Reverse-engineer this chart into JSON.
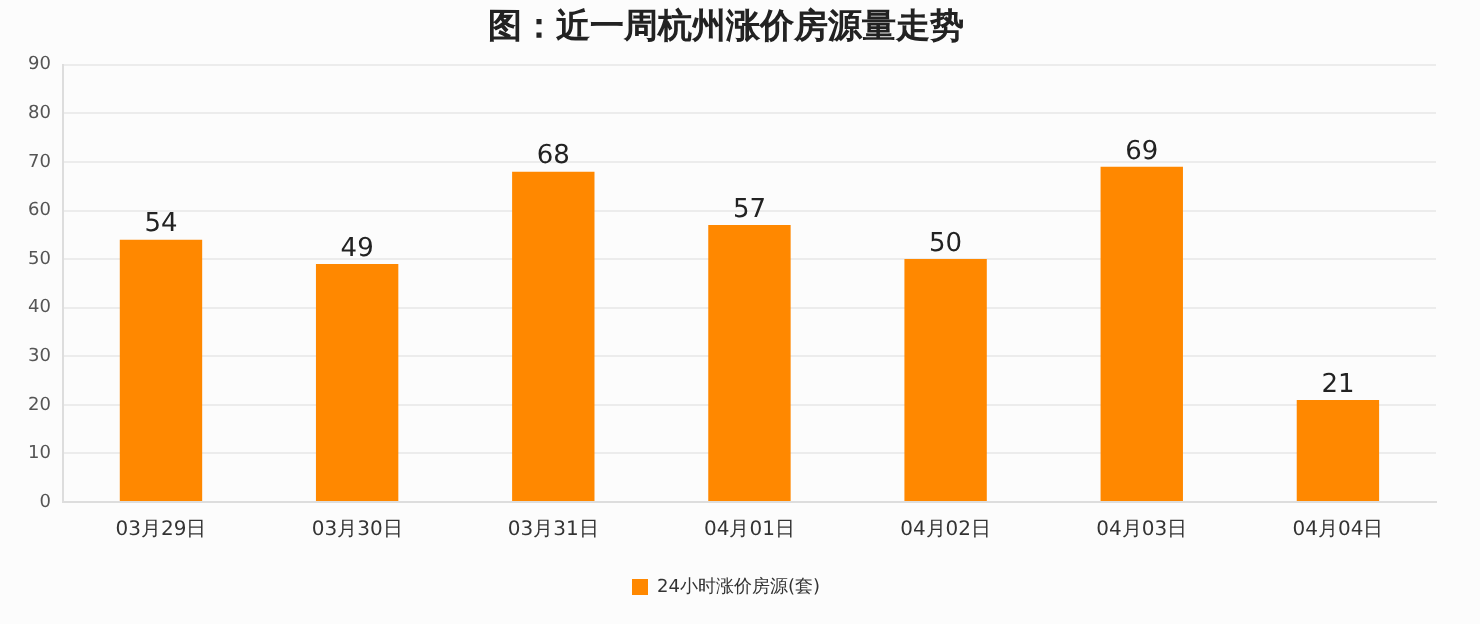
{
  "chart_data": {
    "type": "bar",
    "title": "图：近一周杭州涨价房源量走势",
    "categories": [
      "03月29日",
      "03月30日",
      "03月31日",
      "04月01日",
      "04月02日",
      "04月03日",
      "04月04日"
    ],
    "series": [
      {
        "name": "24小时涨价房源(套)",
        "color": "#ff8800",
        "values": [
          54,
          49,
          68,
          57,
          50,
          69,
          21
        ]
      }
    ],
    "ylim": [
      0,
      90
    ],
    "yticks": [
      0,
      10,
      20,
      30,
      40,
      50,
      60,
      70,
      80,
      90
    ],
    "grid": "y",
    "legend": "bottom",
    "data_labels": true
  }
}
